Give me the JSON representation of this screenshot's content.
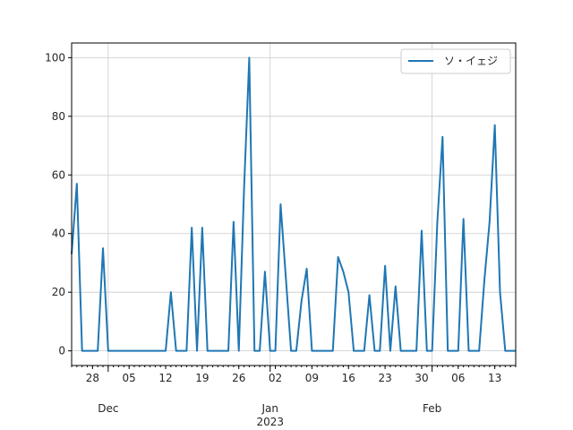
{
  "chart_data": {
    "type": "line",
    "title": "",
    "xlabel": "",
    "ylabel": "",
    "x_range": [
      "2022-11-24",
      "2023-02-17"
    ],
    "ylim": [
      -5,
      105
    ],
    "grid": true,
    "legend_position": "top-right",
    "y_ticks": [
      0,
      20,
      40,
      60,
      80,
      100
    ],
    "x_ticks_minor": [
      {
        "date": "2022-11-28",
        "label": "28"
      },
      {
        "date": "2022-12-05",
        "label": "05"
      },
      {
        "date": "2022-12-12",
        "label": "12"
      },
      {
        "date": "2022-12-19",
        "label": "19"
      },
      {
        "date": "2022-12-26",
        "label": "26"
      },
      {
        "date": "2023-01-02",
        "label": "02"
      },
      {
        "date": "2023-01-09",
        "label": "09"
      },
      {
        "date": "2023-01-16",
        "label": "16"
      },
      {
        "date": "2023-01-23",
        "label": "23"
      },
      {
        "date": "2023-01-30",
        "label": "30"
      },
      {
        "date": "2023-02-06",
        "label": "06"
      },
      {
        "date": "2023-02-13",
        "label": "13"
      }
    ],
    "x_ticks_major": [
      {
        "date": "2022-12-01",
        "label": "Dec"
      },
      {
        "date": "2023-01-01",
        "label": "Jan"
      },
      {
        "date": "2023-02-01",
        "label": "Feb"
      }
    ],
    "year_label": {
      "date": "2023-01-01",
      "label": "2023"
    },
    "series": [
      {
        "name": "ソ・イェジ",
        "color": "#1f77b4",
        "x": [
          "2022-11-24",
          "2022-11-25",
          "2022-11-26",
          "2022-11-27",
          "2022-11-28",
          "2022-11-29",
          "2022-11-30",
          "2022-12-01",
          "2022-12-02",
          "2022-12-03",
          "2022-12-04",
          "2022-12-05",
          "2022-12-06",
          "2022-12-07",
          "2022-12-08",
          "2022-12-09",
          "2022-12-10",
          "2022-12-11",
          "2022-12-12",
          "2022-12-13",
          "2022-12-14",
          "2022-12-15",
          "2022-12-16",
          "2022-12-17",
          "2022-12-18",
          "2022-12-19",
          "2022-12-20",
          "2022-12-21",
          "2022-12-22",
          "2022-12-23",
          "2022-12-24",
          "2022-12-25",
          "2022-12-26",
          "2022-12-27",
          "2022-12-28",
          "2022-12-29",
          "2022-12-30",
          "2022-12-31",
          "2023-01-01",
          "2023-01-02",
          "2023-01-03",
          "2023-01-04",
          "2023-01-05",
          "2023-01-06",
          "2023-01-07",
          "2023-01-08",
          "2023-01-09",
          "2023-01-10",
          "2023-01-11",
          "2023-01-12",
          "2023-01-13",
          "2023-01-14",
          "2023-01-15",
          "2023-01-16",
          "2023-01-17",
          "2023-01-18",
          "2023-01-19",
          "2023-01-20",
          "2023-01-21",
          "2023-01-22",
          "2023-01-23",
          "2023-01-24",
          "2023-01-25",
          "2023-01-26",
          "2023-01-27",
          "2023-01-28",
          "2023-01-29",
          "2023-01-30",
          "2023-01-31",
          "2023-02-01",
          "2023-02-02",
          "2023-02-03",
          "2023-02-04",
          "2023-02-05",
          "2023-02-06",
          "2023-02-07",
          "2023-02-08",
          "2023-02-09",
          "2023-02-10",
          "2023-02-11",
          "2023-02-12",
          "2023-02-13",
          "2023-02-14",
          "2023-02-15",
          "2023-02-16",
          "2023-02-17"
        ],
        "y": [
          33,
          57,
          0,
          0,
          0,
          0,
          35,
          0,
          0,
          0,
          0,
          0,
          0,
          0,
          0,
          0,
          0,
          0,
          0,
          20,
          0,
          0,
          0,
          42,
          0,
          42,
          0,
          0,
          0,
          0,
          0,
          44,
          0,
          55,
          100,
          0,
          0,
          27,
          0,
          0,
          50,
          25,
          0,
          0,
          17,
          28,
          0,
          0,
          0,
          0,
          0,
          32,
          27,
          20,
          0,
          0,
          0,
          19,
          0,
          0,
          29,
          0,
          22,
          0,
          0,
          0,
          0,
          41,
          0,
          0,
          44,
          73,
          0,
          0,
          0,
          45,
          0,
          0,
          0,
          24,
          44,
          77,
          20,
          0,
          0,
          0
        ]
      }
    ]
  }
}
